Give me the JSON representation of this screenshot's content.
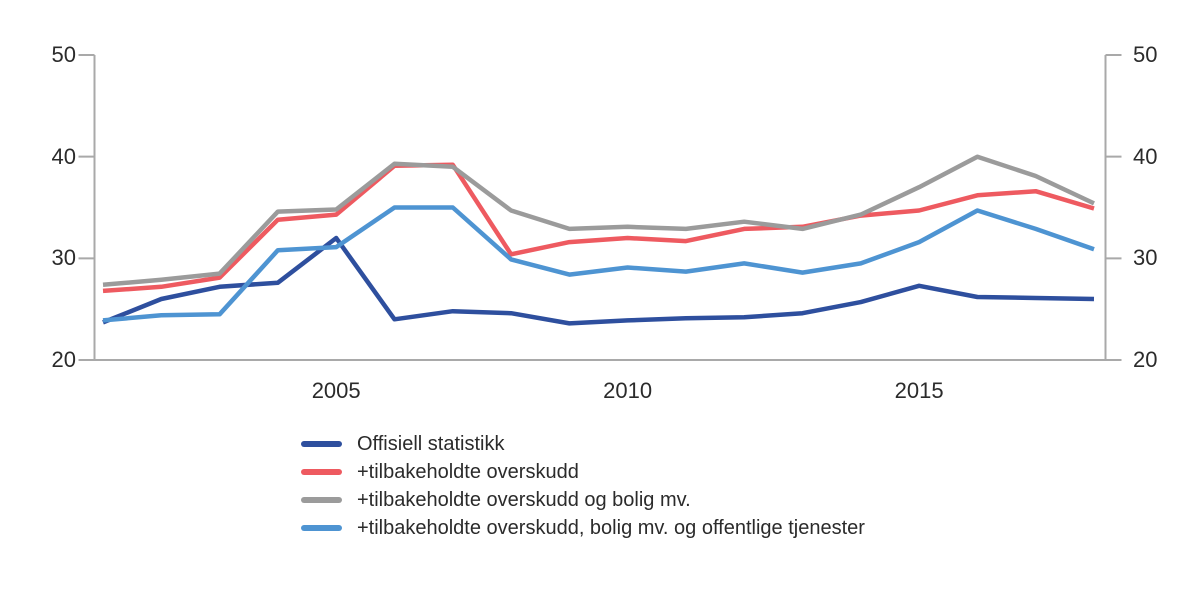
{
  "figure": {
    "background": "#ffffff",
    "text_color": "#2b2b2b",
    "axis_color": "#a9a9a9"
  },
  "chart_data": {
    "type": "line",
    "title": "",
    "xlabel": "",
    "ylabel": "",
    "grid": false,
    "dual_y_axis": true,
    "legend_position": "bottom-left",
    "ylim": [
      20,
      50
    ],
    "yticks": [
      20,
      30,
      40,
      50
    ],
    "xticks": [
      2005,
      2010,
      2015
    ],
    "x": [
      2001,
      2002,
      2003,
      2004,
      2005,
      2006,
      2007,
      2008,
      2009,
      2010,
      2011,
      2012,
      2013,
      2014,
      2015,
      2016,
      2017,
      2018
    ],
    "series": [
      {
        "name": "Offisiell statistikk",
        "color": "#2e4f9e",
        "values": [
          23.7,
          26.0,
          27.2,
          27.6,
          32.0,
          24.0,
          24.8,
          24.6,
          23.6,
          23.9,
          24.1,
          24.2,
          24.6,
          25.7,
          27.3,
          26.2,
          26.1,
          26.0
        ]
      },
      {
        "name": "+tilbakeholdte overskudd",
        "color": "#ee5a60",
        "values": [
          26.8,
          27.2,
          28.1,
          33.8,
          34.3,
          39.1,
          39.2,
          30.4,
          31.6,
          32.0,
          31.7,
          32.9,
          33.1,
          34.2,
          34.7,
          36.2,
          36.6,
          34.9
        ]
      },
      {
        "name": "+tilbakeholdte overskudd og bolig mv.",
        "color": "#9b9b9b",
        "values": [
          27.4,
          27.9,
          28.5,
          34.6,
          34.8,
          39.3,
          39.0,
          34.7,
          32.9,
          33.1,
          32.9,
          33.6,
          32.9,
          34.3,
          37.0,
          40.0,
          38.1,
          35.4
        ]
      },
      {
        "name": "+tilbakeholdte overskudd, bolig mv. og offentlige tjenester",
        "color": "#4e94d2",
        "values": [
          23.9,
          24.4,
          24.5,
          30.8,
          31.1,
          35.0,
          35.0,
          29.9,
          28.4,
          29.1,
          28.7,
          29.5,
          28.6,
          29.5,
          31.6,
          34.7,
          32.9,
          30.9
        ]
      }
    ]
  }
}
